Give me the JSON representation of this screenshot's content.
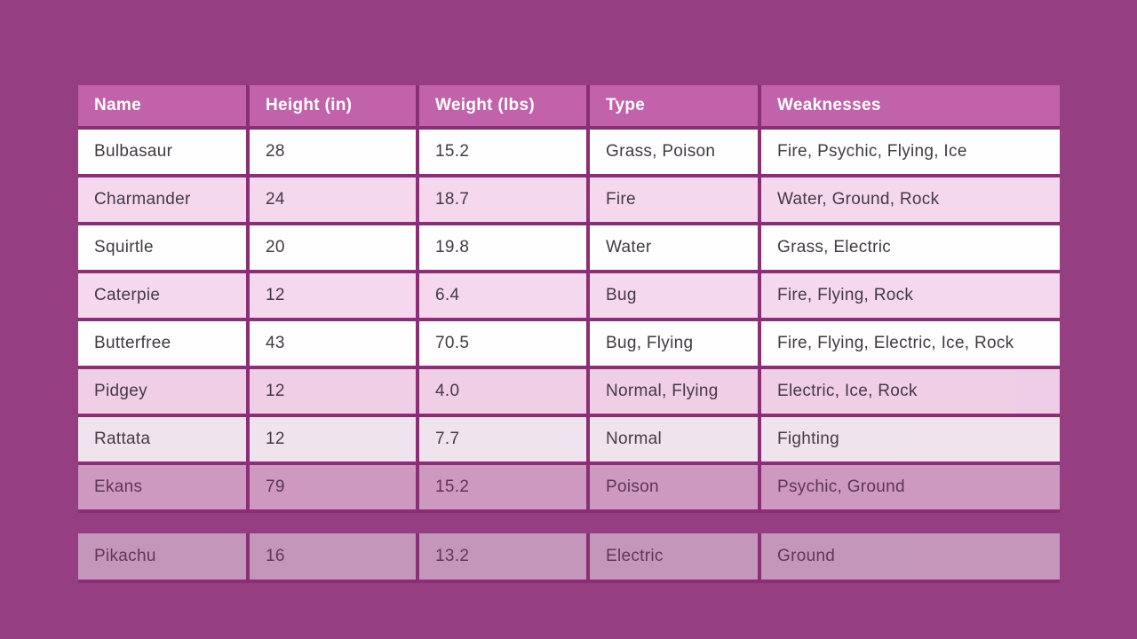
{
  "colors": {
    "page_bg": "#953e82",
    "divider": "#8a2e75",
    "header_bg": "#c162aa",
    "header_text": "#ffffff",
    "row_white": "#fffeff",
    "row_pink": "#f6d8ee",
    "cell_text": "#433a41"
  },
  "chart_data": {
    "type": "table",
    "title": "",
    "legend": "none",
    "columns": [
      "Name",
      "Height (in)",
      "Weight (lbs)",
      "Type",
      "Weaknesses"
    ],
    "rows": [
      [
        "Bulbasaur",
        "28",
        "15.2",
        "Grass, Poison",
        "Fire, Psychic, Flying, Ice"
      ],
      [
        "Charmander",
        "24",
        "18.7",
        "Fire",
        "Water, Ground, Rock"
      ],
      [
        "Squirtle",
        "20",
        "19.8",
        "Water",
        "Grass, Electric"
      ],
      [
        "Caterpie",
        "12",
        "6.4",
        "Bug",
        "Fire, Flying, Rock"
      ],
      [
        "Butterfree",
        "43",
        "70.5",
        "Bug, Flying",
        "Fire, Flying, Electric, Ice, Rock"
      ],
      [
        "Pidgey",
        "12",
        "4.0",
        "Normal, Flying",
        "Electric, Ice, Rock"
      ],
      [
        "Rattata",
        "12",
        "7.7",
        "Normal",
        "Fighting"
      ],
      [
        "Ekans",
        "79",
        "15.2",
        "Poison",
        "Psychic, Ground"
      ],
      [
        "Pikachu",
        "16",
        "13.2",
        "Electric",
        "Ground"
      ]
    ],
    "row_fade_opacity": [
      1,
      1,
      1,
      1,
      1,
      0.94,
      0.87,
      0.63,
      0.5
    ],
    "detached_row_index": 8,
    "row_striping": "odd-rows-white-even-rows-pink"
  }
}
